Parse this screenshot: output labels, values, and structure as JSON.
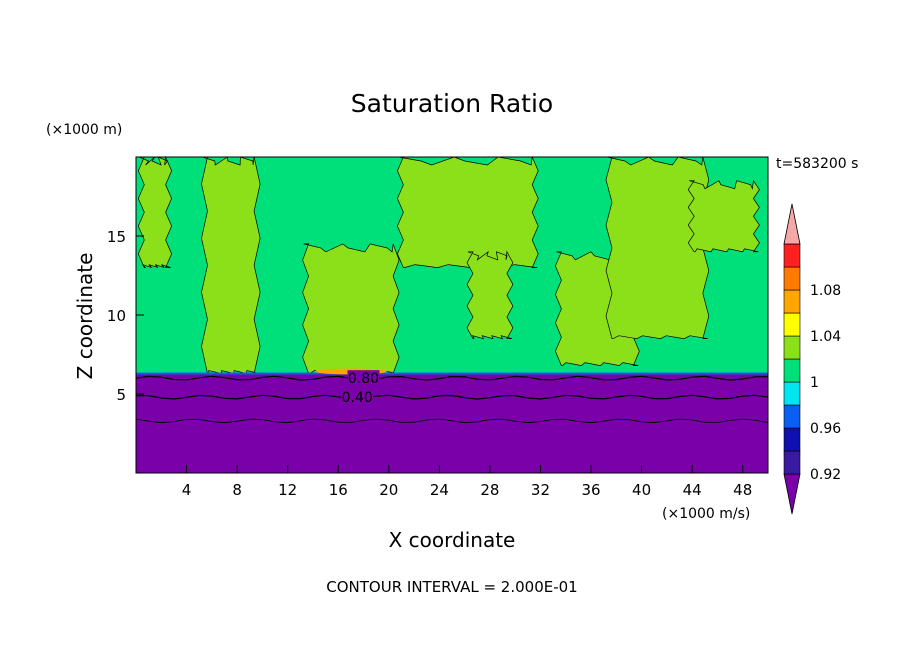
{
  "chart_data": {
    "type": "heatmap",
    "title": "Saturation Ratio",
    "xlabel": "X coordinate",
    "ylabel": "Z coordinate",
    "x_unit": "(×1000 m/s)",
    "y_unit": "(×1000 m)",
    "time_label": "t=583200 s",
    "footer": "CONTOUR INTERVAL = 2.000E-01",
    "xlim": [
      0,
      50
    ],
    "ylim": [
      0,
      20
    ],
    "x_ticks": [
      4,
      8,
      12,
      16,
      20,
      24,
      28,
      32,
      36,
      40,
      44,
      48
    ],
    "y_ticks": [
      5,
      10,
      15
    ],
    "grid": false,
    "colorbar": {
      "levels": [
        {
          "label": "",
          "color": "#7a00aa"
        },
        {
          "label": "0.92",
          "color": "#3a1aa0"
        },
        {
          "label": "",
          "color": "#1010b0"
        },
        {
          "label": "0.96",
          "color": "#0a5ff0"
        },
        {
          "label": "",
          "color": "#00e5f0"
        },
        {
          "label": "1",
          "color": "#00e07a"
        },
        {
          "label": "",
          "color": "#8ce01a"
        },
        {
          "label": "1.04",
          "color": "#ffff00"
        },
        {
          "label": "",
          "color": "#ffa500"
        },
        {
          "label": "1.08",
          "color": "#ff7a00"
        },
        {
          "label": "",
          "color": "#ff2020"
        },
        {
          "label": "",
          "color": "#f4a8a8"
        }
      ]
    },
    "contour_labels": [
      {
        "text": "0.80",
        "x": 18,
        "z": 6.0
      },
      {
        "text": "0.40",
        "x": 17.5,
        "z": 4.8
      }
    ],
    "regions": {
      "dry_layer_top_z": 6.3,
      "green_columns": [
        {
          "x0": 0.5,
          "x1": 2.5,
          "z0": 13,
          "z1": 20
        },
        {
          "x0": 5.5,
          "x1": 9.5,
          "z0": 6.3,
          "z1": 20
        },
        {
          "x0": 13.5,
          "x1": 20.5,
          "z0": 6.3,
          "z1": 14.5
        },
        {
          "x0": 21,
          "x1": 31.5,
          "z0": 13,
          "z1": 20
        },
        {
          "x0": 26.5,
          "x1": 29.5,
          "z0": 8.5,
          "z1": 14
        },
        {
          "x0": 33.5,
          "x1": 39.5,
          "z0": 6.8,
          "z1": 14
        },
        {
          "x0": 37.5,
          "x1": 45,
          "z0": 8.5,
          "z1": 20
        },
        {
          "x0": 44,
          "x1": 49,
          "z0": 14,
          "z1": 18.5
        }
      ]
    }
  }
}
